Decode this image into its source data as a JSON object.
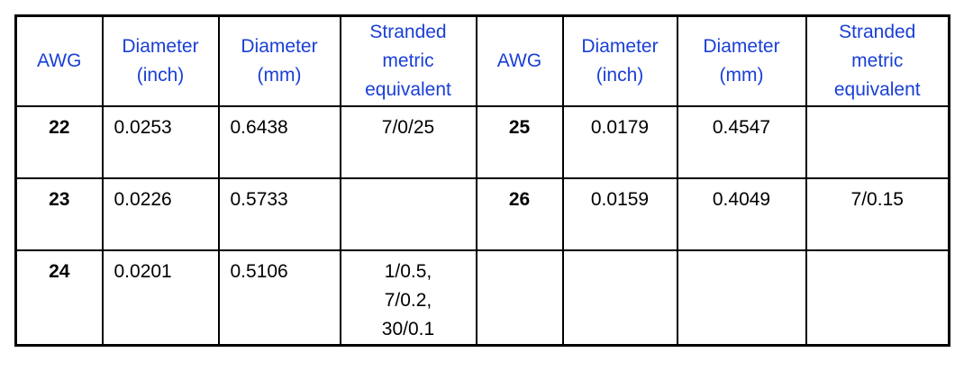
{
  "table": {
    "headers": [
      [
        "AWG"
      ],
      [
        "Diameter",
        "(inch)"
      ],
      [
        "Diameter",
        "(mm)"
      ],
      [
        "Stranded",
        "metric",
        "equivalent"
      ],
      [
        "AWG"
      ],
      [
        "Diameter",
        "(inch)"
      ],
      [
        "Diameter",
        "(mm)"
      ],
      [
        "Stranded",
        "metric",
        "equivalent"
      ]
    ],
    "rows": [
      {
        "left": {
          "awg": "22",
          "inch": "0.0253",
          "mm": "0.6438",
          "stranded": [
            "7/0/25"
          ]
        },
        "right": {
          "awg": "25",
          "inch": "0.0179",
          "mm": "0.4547",
          "stranded": [
            ""
          ]
        }
      },
      {
        "left": {
          "awg": "23",
          "inch": "0.0226",
          "mm": "0.5733",
          "stranded": [
            ""
          ]
        },
        "right": {
          "awg": "26",
          "inch": "0.0159",
          "mm": "0.4049",
          "stranded": [
            "7/0.15"
          ]
        }
      },
      {
        "left": {
          "awg": "24",
          "inch": "0.0201",
          "mm": "0.5106",
          "stranded": [
            "1/0.5,",
            "7/0.2,",
            "30/0.1"
          ]
        },
        "right": {
          "awg": "",
          "inch": "",
          "mm": "",
          "stranded": [
            ""
          ]
        }
      }
    ]
  }
}
